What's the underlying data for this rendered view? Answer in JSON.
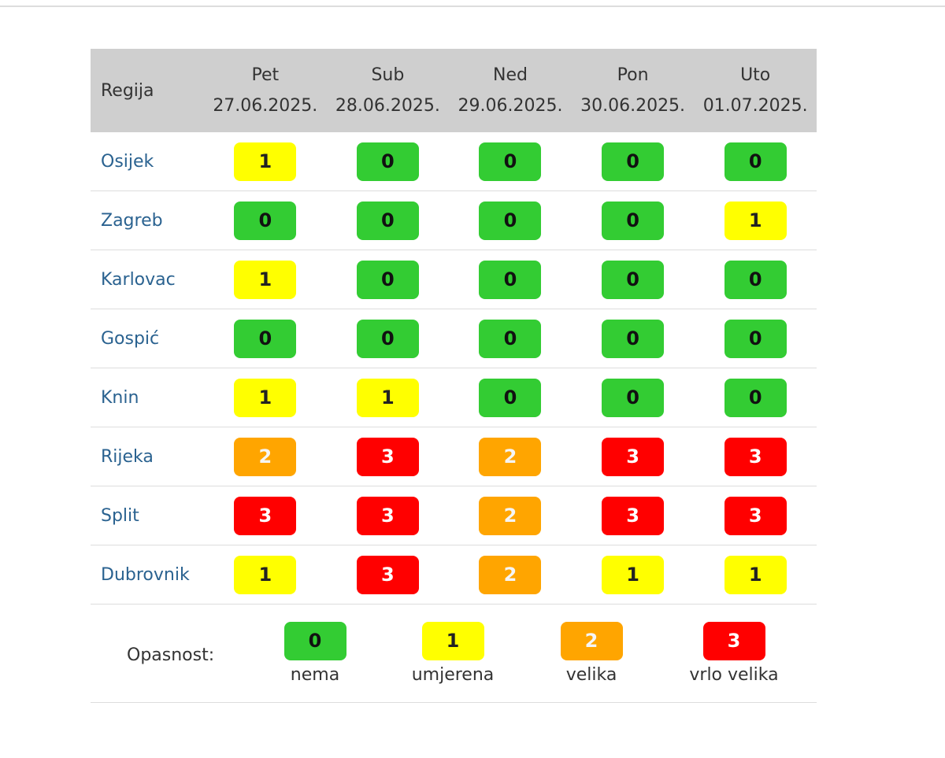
{
  "header": {
    "region_label": "Regija",
    "days": [
      {
        "day": "Pet",
        "date": "27.06.2025."
      },
      {
        "day": "Sub",
        "date": "28.06.2025."
      },
      {
        "day": "Ned",
        "date": "29.06.2025."
      },
      {
        "day": "Pon",
        "date": "30.06.2025."
      },
      {
        "day": "Uto",
        "date": "01.07.2025."
      }
    ]
  },
  "rows": [
    {
      "region": "Osijek",
      "levels": [
        "1",
        "0",
        "0",
        "0",
        "0"
      ]
    },
    {
      "region": "Zagreb",
      "levels": [
        "0",
        "0",
        "0",
        "0",
        "1"
      ]
    },
    {
      "region": "Karlovac",
      "levels": [
        "1",
        "0",
        "0",
        "0",
        "0"
      ]
    },
    {
      "region": "Gospić",
      "levels": [
        "0",
        "0",
        "0",
        "0",
        "0"
      ]
    },
    {
      "region": "Knin",
      "levels": [
        "1",
        "1",
        "0",
        "0",
        "0"
      ]
    },
    {
      "region": "Rijeka",
      "levels": [
        "2",
        "3",
        "2",
        "3",
        "3"
      ]
    },
    {
      "region": "Split",
      "levels": [
        "3",
        "3",
        "2",
        "3",
        "3"
      ]
    },
    {
      "region": "Dubrovnik",
      "levels": [
        "1",
        "3",
        "2",
        "1",
        "1"
      ]
    }
  ],
  "legend": {
    "label": "Opasnost:",
    "items": [
      {
        "level": "0",
        "text": "nema"
      },
      {
        "level": "1",
        "text": "umjerena"
      },
      {
        "level": "2",
        "text": "velika"
      },
      {
        "level": "3",
        "text": "vrlo velika"
      }
    ]
  },
  "colors": {
    "0": {
      "bg": "#33cc33",
      "fg": "#111111"
    },
    "1": {
      "bg": "#ffff00",
      "fg": "#222222"
    },
    "2": {
      "bg": "#ffa500",
      "fg": "#f5f5f5"
    },
    "3": {
      "bg": "#ff0000",
      "fg": "#ffffff"
    }
  }
}
